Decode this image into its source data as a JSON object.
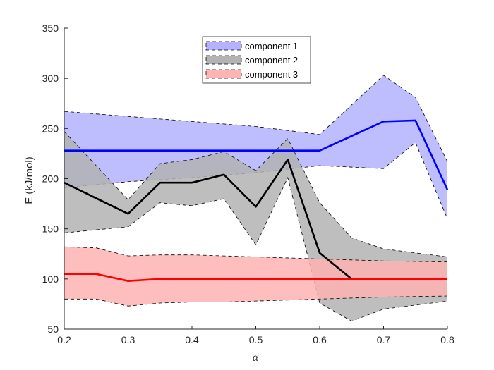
{
  "chart_data": {
    "type": "area",
    "xlabel": "α",
    "ylabel": "E (kJ/mol)",
    "xlim": [
      0.2,
      0.8
    ],
    "ylim": [
      50,
      350
    ],
    "xticks": [
      0.2,
      0.3,
      0.4,
      0.5,
      0.6,
      0.7,
      0.8
    ],
    "xtick_labels": [
      "0.2",
      "0.3",
      "0.4",
      "0.5",
      "0.6",
      "0.7",
      "0.8"
    ],
    "yticks": [
      50,
      100,
      150,
      200,
      250,
      300,
      350
    ],
    "ytick_labels": [
      "50",
      "100",
      "150",
      "200",
      "250",
      "300",
      "350"
    ],
    "grid": false,
    "legend_position": "top-center",
    "series": [
      {
        "name": "component 1",
        "line_color": "#0000ff",
        "fill_color": "#b3b3ff",
        "x": [
          0.2,
          0.3,
          0.4,
          0.5,
          0.6,
          0.7,
          0.75,
          0.8
        ],
        "mean": [
          228,
          228,
          228,
          228,
          228,
          257,
          258,
          189
        ],
        "upper": [
          267,
          262,
          257,
          252,
          244,
          303,
          281,
          217
        ],
        "lower": [
          191,
          197,
          201,
          206,
          213,
          210,
          236,
          160
        ]
      },
      {
        "name": "component 2",
        "line_color": "#000000",
        "fill_color": "#b3b3b3",
        "x": [
          0.2,
          0.3,
          0.35,
          0.4,
          0.45,
          0.5,
          0.55,
          0.6,
          0.65,
          0.7,
          0.8
        ],
        "mean": [
          196,
          165,
          196,
          196,
          204,
          172,
          219,
          126,
          100,
          null,
          null
        ],
        "upper": [
          247,
          179,
          215,
          219,
          227,
          208,
          240,
          176,
          141,
          130,
          122
        ],
        "lower": [
          146,
          152,
          176,
          173,
          180,
          134,
          201,
          76,
          58,
          70,
          78
        ]
      },
      {
        "name": "component 3",
        "line_color": "#ff0000",
        "fill_color": "#ffb3b3",
        "x": [
          0.2,
          0.25,
          0.3,
          0.35,
          0.4,
          0.45,
          0.5,
          0.55,
          0.6,
          0.65,
          0.7,
          0.8
        ],
        "mean": [
          105,
          105,
          98,
          100,
          100,
          100,
          100,
          100,
          100,
          100,
          100,
          100
        ],
        "upper": [
          132,
          131,
          123,
          124,
          124,
          123,
          122,
          121,
          120,
          119,
          118,
          117
        ],
        "lower": [
          80,
          80,
          73,
          76,
          77,
          77,
          78,
          79,
          80,
          81,
          82,
          83
        ]
      }
    ]
  }
}
